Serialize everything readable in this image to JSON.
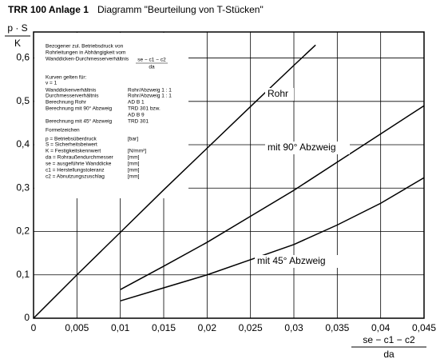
{
  "chart_data": {
    "type": "line",
    "title": "TRR 100 Anlage 1",
    "subtitle": "Diagramm \"Beurteilung von T-Stücken\"",
    "ylabel": {
      "num": "p · S",
      "den": "K"
    },
    "xlabel": {
      "num": "se − c1 − c2",
      "den": "da"
    },
    "xlim": [
      0,
      0.045
    ],
    "ylim": [
      0,
      0.66
    ],
    "xticks": [
      0,
      {
        "value": 0.005,
        "label": "0,005"
      },
      {
        "value": 0.01,
        "label": "0,01"
      },
      {
        "value": 0.015,
        "label": "0,015"
      },
      {
        "value": 0.02,
        "label": "0,02"
      },
      {
        "value": 0.025,
        "label": "0,025"
      },
      {
        "value": 0.03,
        "label": "0,03"
      },
      {
        "value": 0.035,
        "label": "0,035"
      },
      {
        "value": 0.04,
        "label": "0,04"
      },
      {
        "value": 0.045,
        "label": "0,045"
      }
    ],
    "yticks": [
      0,
      {
        "value": 0.1,
        "label": "0,1"
      },
      {
        "value": 0.2,
        "label": "0,2"
      },
      {
        "value": 0.3,
        "label": "0,3"
      },
      {
        "value": 0.4,
        "label": "0,4"
      },
      {
        "value": 0.5,
        "label": "0,5"
      },
      {
        "value": 0.6,
        "label": "0,6"
      }
    ],
    "grid": true,
    "series": [
      {
        "name": "Rohr",
        "color": "#000000",
        "x": [
          0,
          0.005,
          0.01,
          0.015,
          0.02,
          0.025,
          0.03,
          0.0325
        ],
        "values": [
          0,
          0.1,
          0.198,
          0.296,
          0.392,
          0.488,
          0.583,
          0.63
        ]
      },
      {
        "name": "mit 90° Abzweig",
        "color": "#000000",
        "x": [
          0.01,
          0.015,
          0.02,
          0.025,
          0.03,
          0.035,
          0.04,
          0.045
        ],
        "values": [
          0.066,
          0.12,
          0.175,
          0.235,
          0.295,
          0.36,
          0.425,
          0.49
        ]
      },
      {
        "name": "mit 45° Abzweig",
        "color": "#000000",
        "x": [
          0.01,
          0.015,
          0.02,
          0.025,
          0.03,
          0.035,
          0.04,
          0.045
        ],
        "values": [
          0.04,
          0.07,
          0.1,
          0.135,
          0.17,
          0.215,
          0.265,
          0.324
        ]
      }
    ],
    "notes": [
      {
        "text": "Bezogener zul. Betriebsdruck von"
      },
      {
        "text": "Rohrleitungen in Abhängigkeit vom"
      },
      {
        "text": "Wanddicken-Durchmesserverhältnis"
      },
      {
        "text": "Kurven gelten für:"
      },
      {
        "text": "v = 1"
      },
      {
        "text": "Wanddickenverhältnis",
        "col2": "Rohr/Abzweig 1 : 1"
      },
      {
        "text": "Durchmesserverhältnis",
        "col2": "Rohr/Abzweig 1 : 1"
      },
      {
        "text": "Berechnung Rohr",
        "col2": "AD B 1"
      },
      {
        "text": "Berechnung mit 90° Abzweig",
        "col2": "TRD 301 bzw."
      },
      {
        "text": "",
        "col2": "AD B 9"
      },
      {
        "text": "Berechnung mit 45° Abzweig",
        "col2": "TRD 301"
      },
      {
        "text": "Formelzeichen"
      },
      {
        "text": "p  =  Betriebsüberdruck",
        "col2": "[bar]"
      },
      {
        "text": "S  =  Sicherheitsbeiwert"
      },
      {
        "text": "K  =  Festigkeitskennwert",
        "col2": "[N/mm²]"
      },
      {
        "text": "da  =  Rohraußendurchmesser",
        "col2": "[mm]"
      },
      {
        "text": "se  =  ausgeführte Wanddicke",
        "col2": "[mm]"
      },
      {
        "text": "c1  =  Herstellungstoleranz",
        "col2": "[mm]"
      },
      {
        "text": "c2  =  Abnutzungszuschlag",
        "col2": "[mm]"
      }
    ],
    "note_formula": {
      "num": "se − c1 − c2",
      "den": "da"
    }
  }
}
